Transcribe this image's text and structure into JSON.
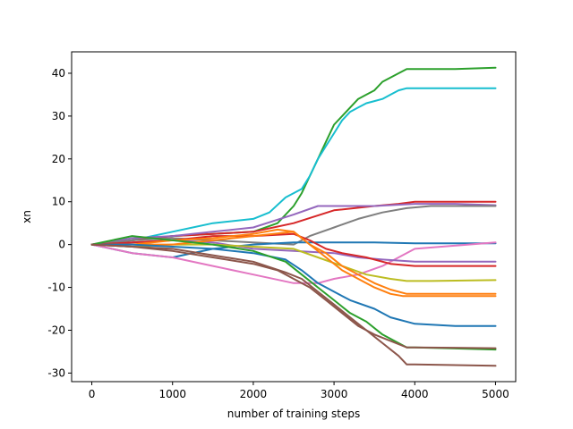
{
  "chart_data": {
    "type": "line",
    "title": "",
    "xlabel": "number of training steps",
    "ylabel": "xn",
    "xlim": [
      -250,
      5250
    ],
    "ylim": [
      -32,
      45
    ],
    "xticks": [
      0,
      1000,
      2000,
      3000,
      4000,
      5000
    ],
    "yticks": [
      -30,
      -20,
      -10,
      0,
      10,
      20,
      30,
      40
    ],
    "grid": false,
    "legend": "none",
    "series": [
      {
        "color": "#2ca02c",
        "x": [
          0,
          500,
          1000,
          1500,
          2000,
          2300,
          2500,
          2600,
          2700,
          2800,
          2900,
          3000,
          3100,
          3200,
          3300,
          3400,
          3500,
          3600,
          3700,
          3800,
          3900,
          4000,
          4500,
          5000
        ],
        "y": [
          0,
          1,
          2,
          2.5,
          3,
          5,
          9,
          12,
          16,
          20,
          24,
          28,
          30,
          32,
          34,
          35,
          36,
          38,
          39,
          40,
          41,
          41,
          41,
          41.3
        ]
      },
      {
        "color": "#17becf",
        "x": [
          0,
          500,
          1000,
          1500,
          2000,
          2200,
          2400,
          2600,
          2700,
          2800,
          2900,
          3000,
          3100,
          3200,
          3300,
          3400,
          3500,
          3600,
          3700,
          3800,
          3900,
          4000,
          4500,
          5000
        ],
        "y": [
          0,
          1,
          3,
          5,
          6,
          7.5,
          11,
          13,
          16,
          20,
          23,
          26,
          29,
          31,
          32,
          33,
          33.5,
          34,
          35,
          36,
          36.5,
          36.5,
          36.5,
          36.5
        ]
      },
      {
        "color": "#d62728",
        "x": [
          0,
          500,
          1000,
          1500,
          2000,
          2500,
          3000,
          3500,
          3800,
          4000,
          4500,
          5000
        ],
        "y": [
          0,
          1,
          2,
          2.5,
          3,
          5,
          8,
          9,
          9.5,
          10,
          10,
          10
        ]
      },
      {
        "color": "#9467bd",
        "x": [
          0,
          500,
          1000,
          1500,
          2000,
          2500,
          2800,
          3000,
          3500,
          4000,
          4500,
          5000
        ],
        "y": [
          0,
          1.5,
          2,
          3,
          4,
          7,
          9,
          9,
          9,
          9.5,
          9.5,
          9.2
        ]
      },
      {
        "color": "#7f7f7f",
        "x": [
          0,
          500,
          1000,
          1500,
          2000,
          2500,
          2700,
          3000,
          3300,
          3600,
          3900,
          4200,
          5000
        ],
        "y": [
          0,
          1,
          1.5,
          1,
          0.5,
          0,
          2,
          4,
          6,
          7.5,
          8.5,
          9,
          9
        ]
      },
      {
        "color": "#1f77b4",
        "x": [
          0,
          500,
          1000,
          1500,
          2000,
          2500,
          3000,
          3500,
          4000,
          4500,
          5000
        ],
        "y": [
          0,
          -2,
          -3,
          -1,
          0,
          0.5,
          0.5,
          0.5,
          0.3,
          0.3,
          0.3
        ]
      },
      {
        "color": "#e377c2",
        "x": [
          0,
          500,
          1000,
          1500,
          2000,
          2500,
          2800,
          3000,
          3300,
          3600,
          3800,
          4000,
          5000
        ],
        "y": [
          0,
          -2,
          -3,
          -5,
          -7,
          -9,
          -9,
          -8,
          -7,
          -5,
          -3,
          -1,
          0.5
        ]
      },
      {
        "color": "#9467bd",
        "x": [
          0,
          500,
          1000,
          1500,
          2000,
          2500,
          3000,
          3300,
          3600,
          4000,
          4500,
          5000
        ],
        "y": [
          0,
          0.5,
          1,
          0.5,
          -1,
          -1.5,
          -2,
          -3,
          -3.5,
          -4,
          -4,
          -4
        ]
      },
      {
        "color": "#d62728",
        "x": [
          0,
          500,
          1000,
          1500,
          2000,
          2500,
          2700,
          2900,
          3100,
          3400,
          3700,
          4000,
          5000
        ],
        "y": [
          0,
          0.5,
          1,
          2,
          2,
          2.5,
          1,
          -1,
          -2,
          -3,
          -4.5,
          -5,
          -5
        ]
      },
      {
        "color": "#bcbd22",
        "x": [
          0,
          500,
          1000,
          1500,
          2000,
          2500,
          2800,
          3100,
          3400,
          3700,
          3900,
          4200,
          5000
        ],
        "y": [
          0,
          -0.5,
          0,
          0,
          -0.5,
          -1,
          -3,
          -5,
          -7,
          -8,
          -8.5,
          -8.5,
          -8.3
        ]
      },
      {
        "color": "#ff7f0e",
        "x": [
          0,
          500,
          1000,
          1500,
          2000,
          2500,
          2700,
          2900,
          3100,
          3300,
          3500,
          3700,
          3900,
          4100,
          5000
        ],
        "y": [
          0,
          0,
          0,
          1,
          2,
          3,
          0,
          -2,
          -5,
          -7,
          -9,
          -10.5,
          -11.5,
          -11.5,
          -11.5
        ]
      },
      {
        "color": "#ff7f0e",
        "x": [
          0,
          500,
          1000,
          1500,
          2000,
          2300,
          2500,
          2700,
          2900,
          3100,
          3300,
          3500,
          3700,
          3850,
          4000,
          5000
        ],
        "y": [
          0,
          0,
          1,
          1.5,
          2.5,
          3.5,
          3,
          0,
          -3,
          -6,
          -8,
          -10,
          -11.5,
          -12,
          -12,
          -12
        ]
      },
      {
        "color": "#1f77b4",
        "x": [
          0,
          500,
          1000,
          1500,
          2000,
          2400,
          2600,
          2800,
          3000,
          3200,
          3500,
          3700,
          4000,
          4500,
          5000
        ],
        "y": [
          0,
          0,
          -0.5,
          -1,
          -2,
          -3.5,
          -6,
          -9,
          -11,
          -13,
          -15,
          -17,
          -18.5,
          -19,
          -19
        ]
      },
      {
        "color": "#2ca02c",
        "x": [
          0,
          500,
          1000,
          1500,
          2000,
          2400,
          2600,
          2800,
          3000,
          3200,
          3400,
          3600,
          3800,
          3900,
          4000,
          5000
        ],
        "y": [
          0,
          2,
          1,
          0,
          -1.5,
          -4,
          -7,
          -10,
          -13,
          -16,
          -18,
          -21,
          -23,
          -24,
          -24,
          -24.5
        ]
      },
      {
        "color": "#8c564b",
        "x": [
          0,
          500,
          1000,
          1500,
          2000,
          2300,
          2500,
          2700,
          2900,
          3100,
          3300,
          3500,
          3700,
          3900,
          4000,
          5000
        ],
        "y": [
          0,
          -0.5,
          -1.5,
          -3,
          -4.5,
          -6,
          -8,
          -10,
          -13,
          -16,
          -19,
          -21,
          -22.5,
          -24,
          -24,
          -24.2
        ]
      },
      {
        "color": "#8c564b",
        "x": [
          0,
          500,
          1000,
          1500,
          2000,
          2400,
          2600,
          2800,
          3000,
          3200,
          3400,
          3600,
          3800,
          3900,
          4000,
          5000
        ],
        "y": [
          0,
          -0.5,
          -1,
          -2.5,
          -4,
          -6.5,
          -8,
          -11,
          -14,
          -17,
          -20,
          -23,
          -26,
          -28,
          -28,
          -28.3
        ]
      }
    ]
  }
}
